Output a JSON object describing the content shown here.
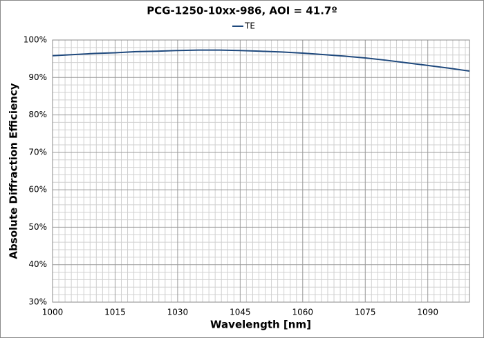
{
  "chart_data": {
    "type": "line",
    "title": "PCG-1250-10xx-986, AOI = 41.7º",
    "x_label": "Wavelength [nm]",
    "y_label": "Absolute Diffraction Efficiency",
    "x": [
      1000,
      1005,
      1010,
      1015,
      1020,
      1025,
      1030,
      1035,
      1040,
      1045,
      1050,
      1055,
      1060,
      1065,
      1070,
      1075,
      1080,
      1085,
      1090,
      1095,
      1100
    ],
    "series": [
      {
        "name": "TE",
        "color": "#1f497d",
        "values": [
          95.8,
          96.1,
          96.4,
          96.6,
          96.9,
          97.0,
          97.2,
          97.3,
          97.3,
          97.2,
          97.0,
          96.8,
          96.5,
          96.1,
          95.7,
          95.2,
          94.6,
          93.9,
          93.2,
          92.5,
          91.7
        ]
      }
    ],
    "xlim": [
      1000,
      1100
    ],
    "xticks": [
      1000,
      1015,
      1030,
      1045,
      1060,
      1075,
      1090
    ],
    "ylim": [
      30,
      100
    ],
    "yticks": [
      {
        "value": 30,
        "label": "30%"
      },
      {
        "value": 40,
        "label": "40%"
      },
      {
        "value": 50,
        "label": "50%"
      },
      {
        "value": 60,
        "label": "60%"
      },
      {
        "value": 70,
        "label": "70%"
      },
      {
        "value": 80,
        "label": "80%"
      },
      {
        "value": 90,
        "label": "90%"
      },
      {
        "value": 100,
        "label": "100%"
      }
    ],
    "grid": true,
    "legend": "top"
  }
}
